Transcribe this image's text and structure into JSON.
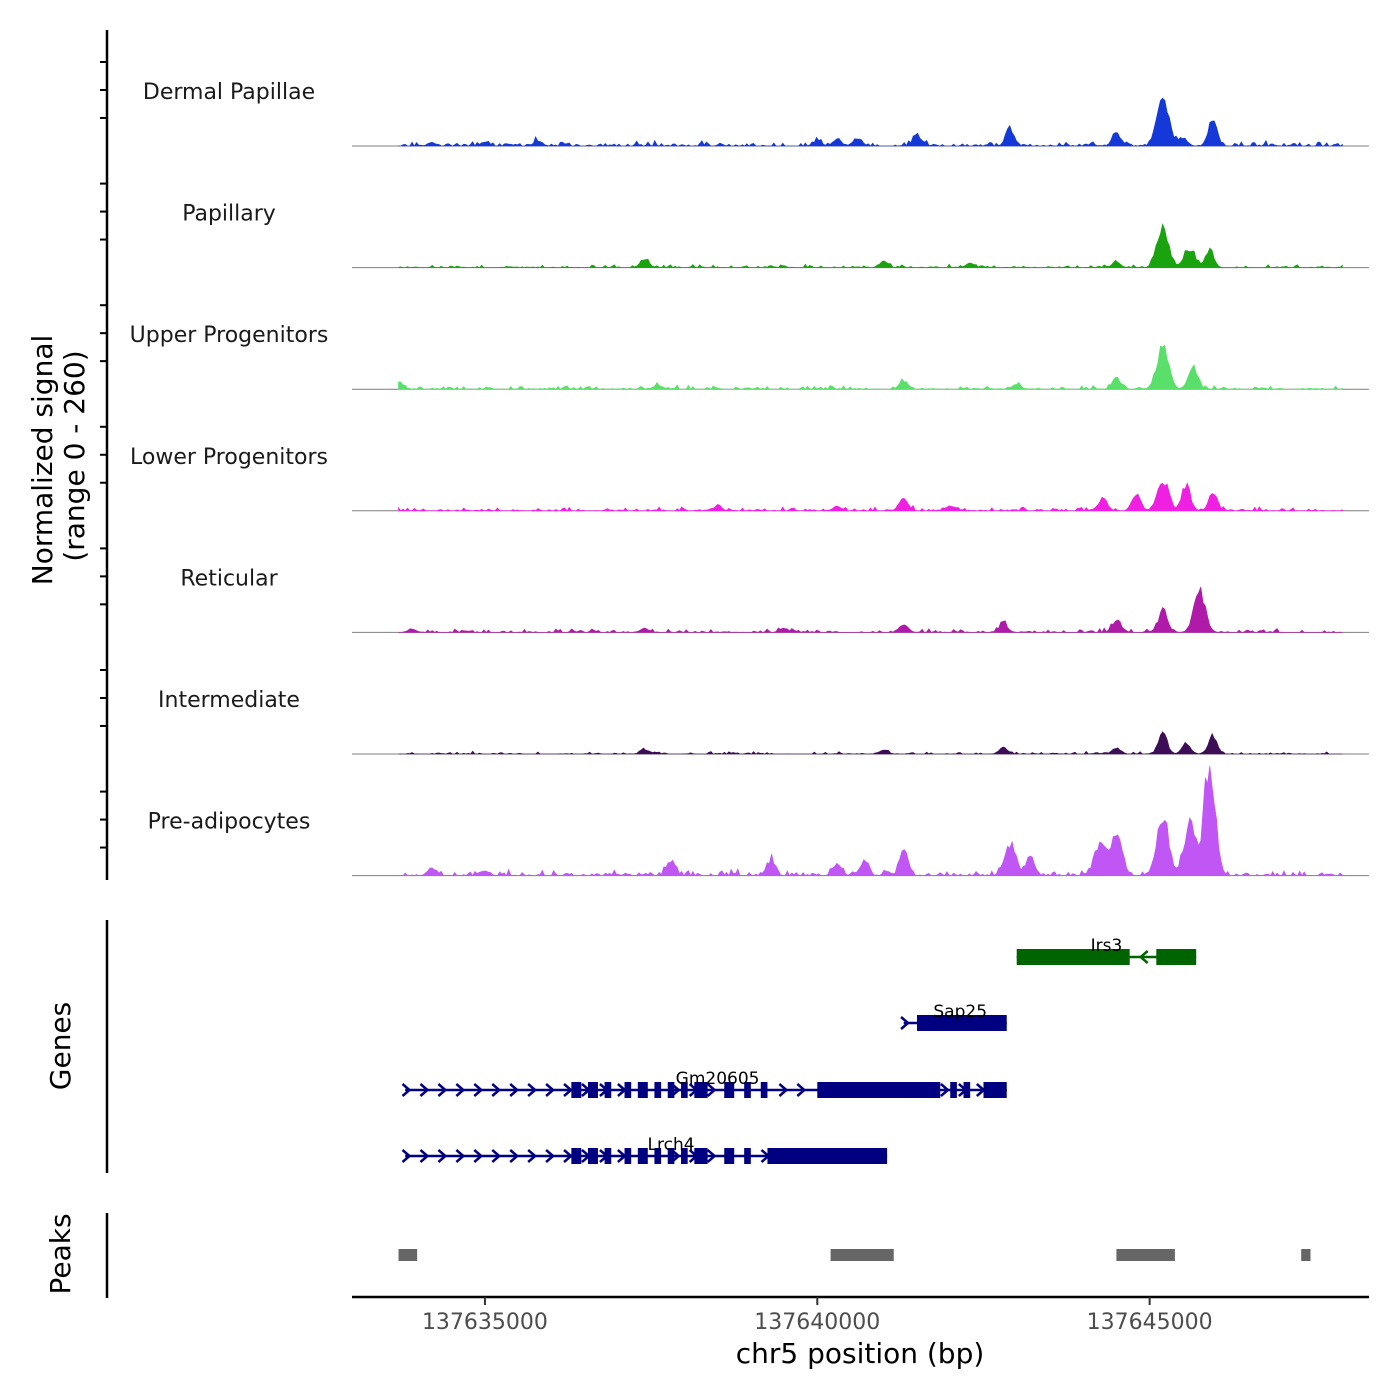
{
  "chart_data": {
    "type": "area",
    "title": "",
    "xlabel": "chr5 position (bp)",
    "ylabel_line1": "Normalized signal",
    "ylabel_line2": "(range 0 - 260)",
    "y_range": [
      0,
      260
    ],
    "xlim": [
      137633000,
      137648300
    ],
    "x_ticks": [
      137635000,
      137640000,
      137645000
    ],
    "x_tick_labels": [
      "137635000",
      "137640000",
      "137645000"
    ],
    "coverage": {
      "signal_start": 137633700,
      "signal_end": 137647900,
      "tracks": [
        {
          "name": "Dermal Papillae",
          "color": "#1538D9",
          "peaks": [
            [
              137645200,
              115
            ],
            [
              137645500,
              20
            ],
            [
              137645950,
              60
            ],
            [
              137644500,
              30
            ],
            [
              137642900,
              40
            ],
            [
              137641500,
              25
            ],
            [
              137640600,
              18
            ],
            [
              137640300,
              15
            ],
            [
              137640000,
              12
            ],
            [
              137635800,
              12
            ],
            [
              137635000,
              10
            ],
            [
              137634200,
              8
            ]
          ],
          "noise": 8,
          "seed": 11
        },
        {
          "name": "Papillary",
          "color": "#1AA30F",
          "peaks": [
            [
              137645200,
              95
            ],
            [
              137645550,
              30
            ],
            [
              137645900,
              38
            ],
            [
              137645650,
              28
            ],
            [
              137637400,
              18
            ],
            [
              137641000,
              15
            ],
            [
              137642300,
              10
            ],
            [
              137644500,
              12
            ]
          ],
          "noise": 5,
          "seed": 23
        },
        {
          "name": "Upper Progenitors",
          "color": "#5AE06A",
          "peaks": [
            [
              137645200,
              100
            ],
            [
              137645650,
              55
            ],
            [
              137644500,
              25
            ],
            [
              137641300,
              20
            ],
            [
              137637600,
              10
            ],
            [
              137633700,
              20
            ],
            [
              137643000,
              12
            ]
          ],
          "noise": 6,
          "seed": 37
        },
        {
          "name": "Lower Progenitors",
          "color": "#F020E3",
          "peaks": [
            [
              137645200,
              70
            ],
            [
              137645550,
              60
            ],
            [
              137645950,
              40
            ],
            [
              137644800,
              38
            ],
            [
              137644300,
              30
            ],
            [
              137641300,
              28
            ],
            [
              137642000,
              12
            ],
            [
              137638500,
              10
            ],
            [
              137640300,
              10
            ]
          ],
          "noise": 6,
          "seed": 41
        },
        {
          "name": "Reticular",
          "color": "#B01AA8",
          "peaks": [
            [
              137645750,
              95
            ],
            [
              137645200,
              50
            ],
            [
              137644500,
              30
            ],
            [
              137641300,
              18
            ],
            [
              137642800,
              20
            ],
            [
              137637400,
              10
            ],
            [
              137639500,
              10
            ],
            [
              137633900,
              8
            ]
          ],
          "noise": 6,
          "seed": 53
        },
        {
          "name": "Intermediate",
          "color": "#3D0E57",
          "peaks": [
            [
              137645200,
              50
            ],
            [
              137645950,
              45
            ],
            [
              137645550,
              25
            ],
            [
              137644500,
              15
            ],
            [
              137642800,
              15
            ],
            [
              137641000,
              10
            ],
            [
              137637400,
              10
            ]
          ],
          "noise": 4,
          "seed": 67
        },
        {
          "name": "Pre-adipocytes",
          "color": "#C057F5",
          "peaks": [
            [
              137645900,
              255
            ],
            [
              137645200,
              140
            ],
            [
              137645600,
              120
            ],
            [
              137644500,
              95
            ],
            [
              137644250,
              75
            ],
            [
              137642900,
              70
            ],
            [
              137643200,
              45
            ],
            [
              137641300,
              55
            ],
            [
              137639300,
              35
            ],
            [
              137640300,
              30
            ],
            [
              137640700,
              30
            ],
            [
              137637800,
              35
            ],
            [
              137634200,
              18
            ],
            [
              137635000,
              12
            ]
          ],
          "noise": 10,
          "seed": 79
        }
      ]
    },
    "genes": {
      "panel_label": "Genes",
      "colors": {
        "plus_strand": "#000080",
        "minus_strand": "#006400"
      },
      "items": [
        {
          "name": "Irs3",
          "strand": "-",
          "start": 137643000,
          "end": 137645700,
          "exons": [
            [
              137643000,
              137644700
            ],
            [
              137645100,
              137645700
            ]
          ]
        },
        {
          "name": "Sap25",
          "strand": "+",
          "start": 137641300,
          "end": 137642850,
          "exons": [
            [
              137641500,
              137642850
            ]
          ]
        },
        {
          "name": "Gm20605",
          "strand": "+",
          "start": 137633800,
          "end": 137642850,
          "exons": [
            [
              137636300,
              137636450
            ],
            [
              137636550,
              137636700
            ],
            [
              137636800,
              137636900
            ],
            [
              137637100,
              137637200
            ],
            [
              137637300,
              137637450
            ],
            [
              137637550,
              137637650
            ],
            [
              137637750,
              137637850
            ],
            [
              137637950,
              137638050
            ],
            [
              137638150,
              137638350
            ],
            [
              137638600,
              137638750
            ],
            [
              137638900,
              137639000
            ],
            [
              137639150,
              137639250
            ],
            [
              137640000,
              137641850
            ],
            [
              137642000,
              137642100
            ],
            [
              137642200,
              137642300
            ],
            [
              137642500,
              137642850
            ]
          ]
        },
        {
          "name": "Lrch4",
          "strand": "+",
          "start": 137633800,
          "end": 137641050,
          "exons": [
            [
              137636300,
              137636450
            ],
            [
              137636550,
              137636700
            ],
            [
              137636800,
              137636900
            ],
            [
              137637100,
              137637200
            ],
            [
              137637300,
              137637450
            ],
            [
              137637550,
              137637650
            ],
            [
              137637750,
              137637850
            ],
            [
              137637950,
              137638050
            ],
            [
              137638150,
              137638350
            ],
            [
              137638600,
              137638750
            ],
            [
              137638900,
              137639000
            ],
            [
              137639250,
              137641050
            ]
          ]
        }
      ]
    },
    "peaks": {
      "panel_label": "Peaks",
      "color": "#666666",
      "regions": [
        [
          137633700,
          137633980
        ],
        [
          137640200,
          137641150
        ],
        [
          137644500,
          137645380
        ],
        [
          137647280,
          137647420
        ]
      ]
    }
  }
}
